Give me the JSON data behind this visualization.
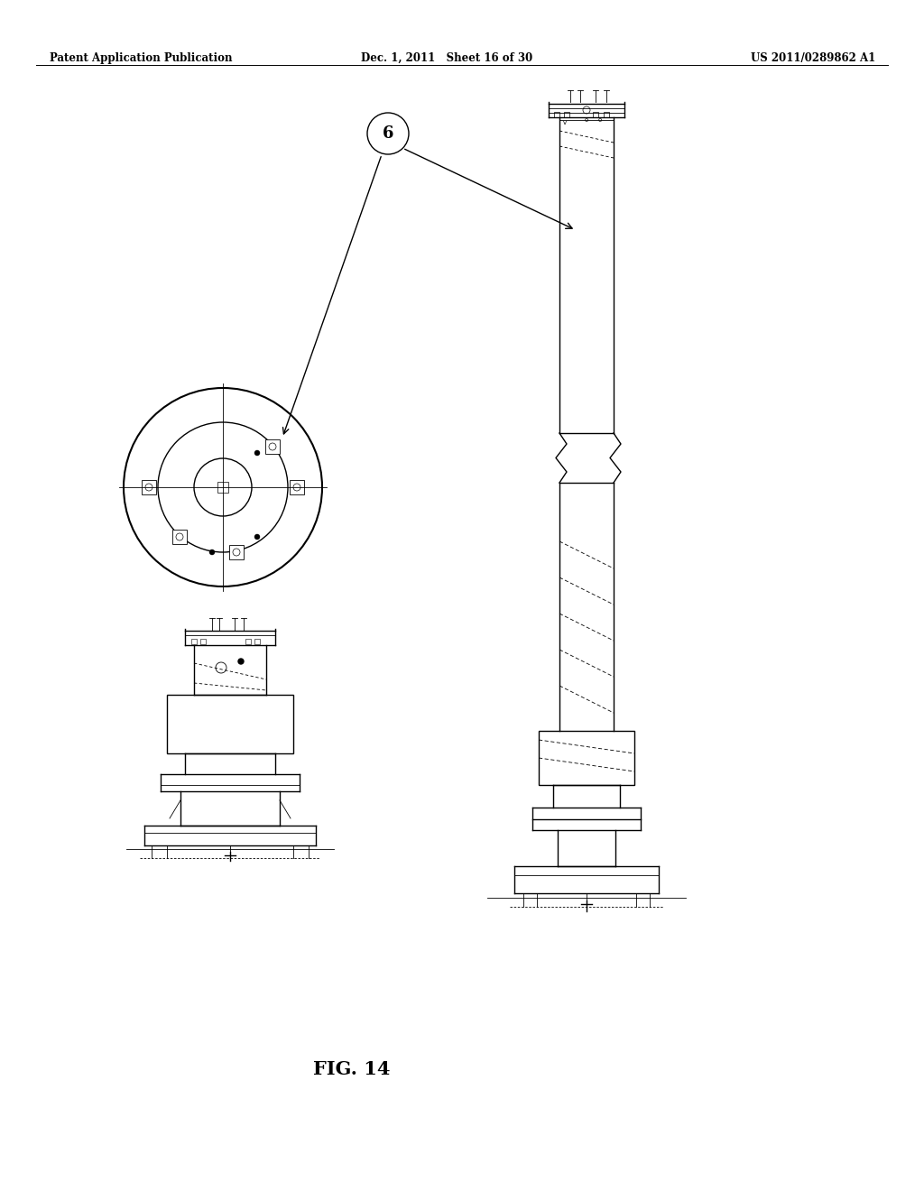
{
  "background_color": "#ffffff",
  "header_left": "Patent Application Publication",
  "header_mid": "Dec. 1, 2011   Sheet 16 of 30",
  "header_right": "US 2011/0289862 A1",
  "fig_label": "FIG. 14",
  "label_6": "6"
}
